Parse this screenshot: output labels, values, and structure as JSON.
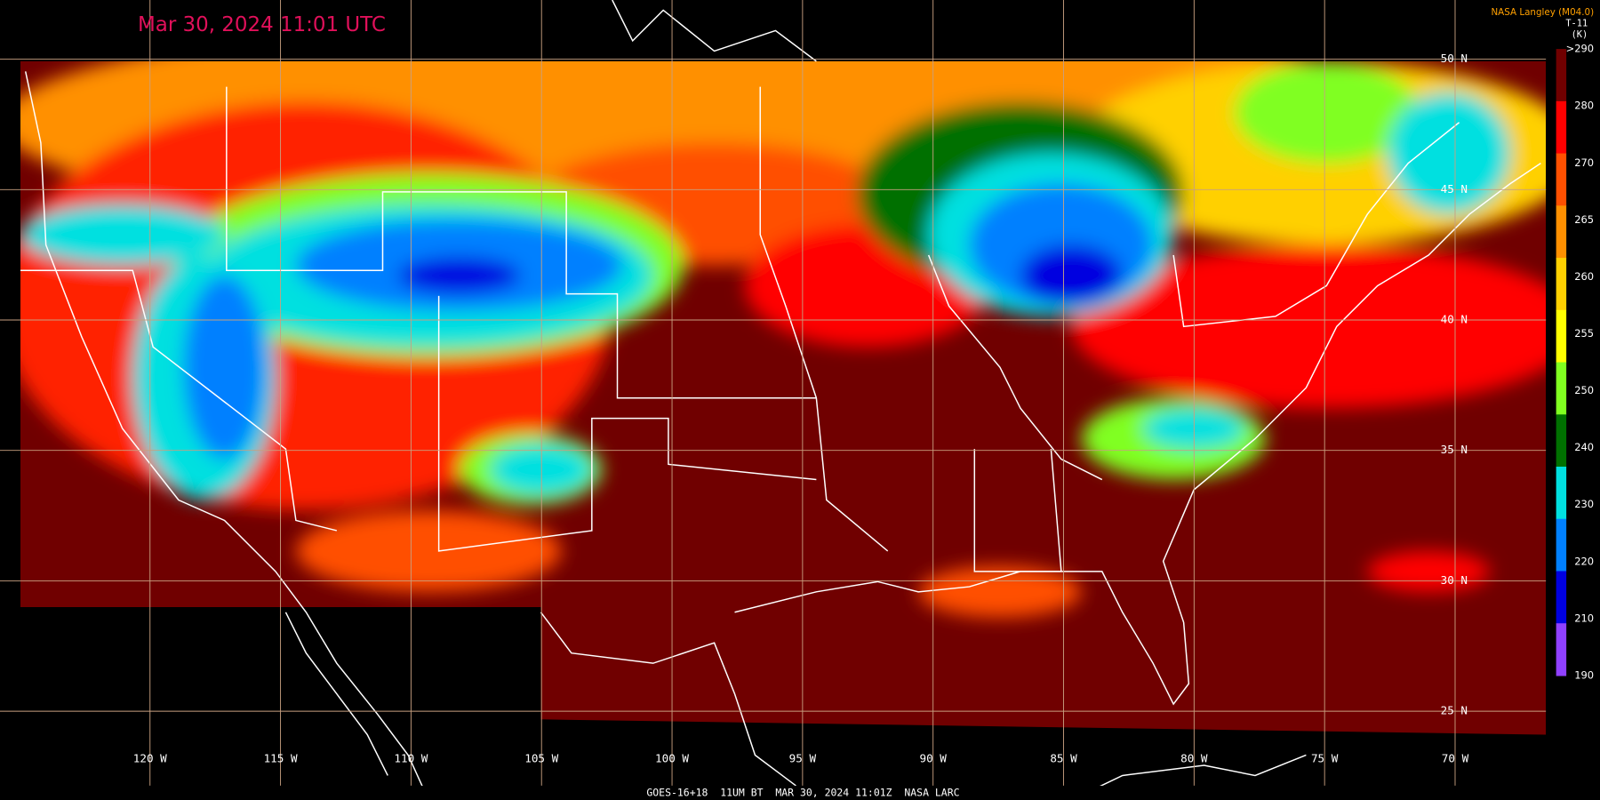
{
  "header": {
    "title": "Mar 30, 2024 11:01 UTC",
    "credit": "NASA Langley (M04.0)"
  },
  "legend": {
    "title": "T-11",
    "unit": "(K)",
    "labels": [
      ">290",
      "280",
      "270",
      "265",
      "260",
      "255",
      "250",
      "240",
      "230",
      "220",
      "210",
      "190"
    ],
    "colors": [
      "#700000",
      "#ff0000",
      "#ff5000",
      "#ff9000",
      "#ffd000",
      "#ffff00",
      "#80ff20",
      "#007000",
      "#00e0e0",
      "#0080ff",
      "#0000e0",
      "#9040ff"
    ]
  },
  "map": {
    "lat_labels": [
      "50 N",
      "45 N",
      "40 N",
      "35 N",
      "30 N",
      "25 N"
    ],
    "lon_labels": [
      "120 W",
      "115 W",
      "110 W",
      "105 W",
      "100 W",
      "95 W",
      "90 W",
      "85 W",
      "80 W",
      "75 W",
      "70 W"
    ]
  },
  "footer": {
    "text": "GOES-16+18  11UM BT  MAR 30, 2024 11:01Z  NASA LARC"
  }
}
